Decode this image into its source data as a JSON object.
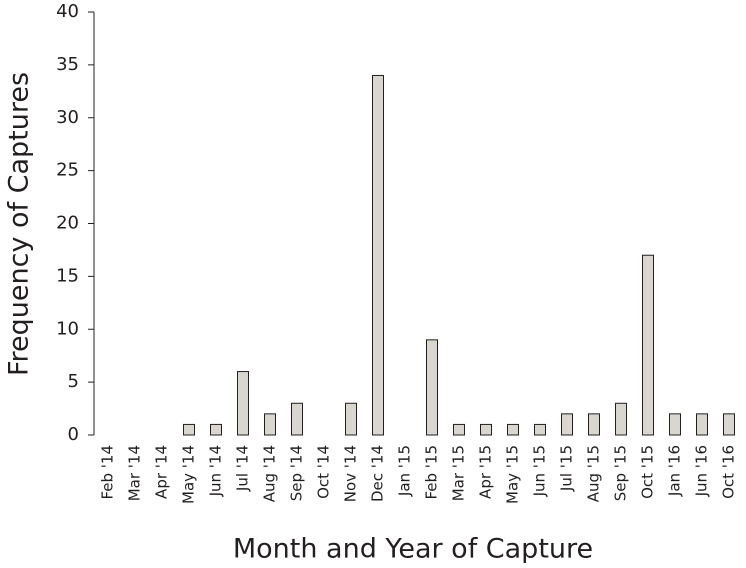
{
  "chart_data": {
    "type": "bar",
    "x_label": "Month and Year of Capture",
    "y_label": "Frequency of Captures",
    "categories": [
      "Feb '14",
      "Mar '14",
      "Apr '14",
      "May '14",
      "Jun '14",
      "Jul '14",
      "Aug '14",
      "Sep '14",
      "Oct '14",
      "Nov '14",
      "Dec '14",
      "Jan '15",
      "Feb '15",
      "Mar '15",
      "Apr '15",
      "May '15",
      "Jun '15",
      "Jul '15",
      "Aug '15",
      "Sep '15",
      "Oct '15",
      "Jan '16",
      "Jun '16",
      "Oct '16"
    ],
    "values": [
      0,
      0,
      0,
      1,
      1,
      6,
      2,
      3,
      0,
      3,
      34,
      0,
      9,
      1,
      1,
      1,
      1,
      2,
      2,
      3,
      17,
      2,
      2,
      2
    ],
    "color": "#d8d6cf",
    "ylim": [
      0,
      40
    ],
    "yticks": [
      0,
      5,
      10,
      15,
      20,
      25,
      30,
      35,
      40
    ],
    "grid": false
  }
}
